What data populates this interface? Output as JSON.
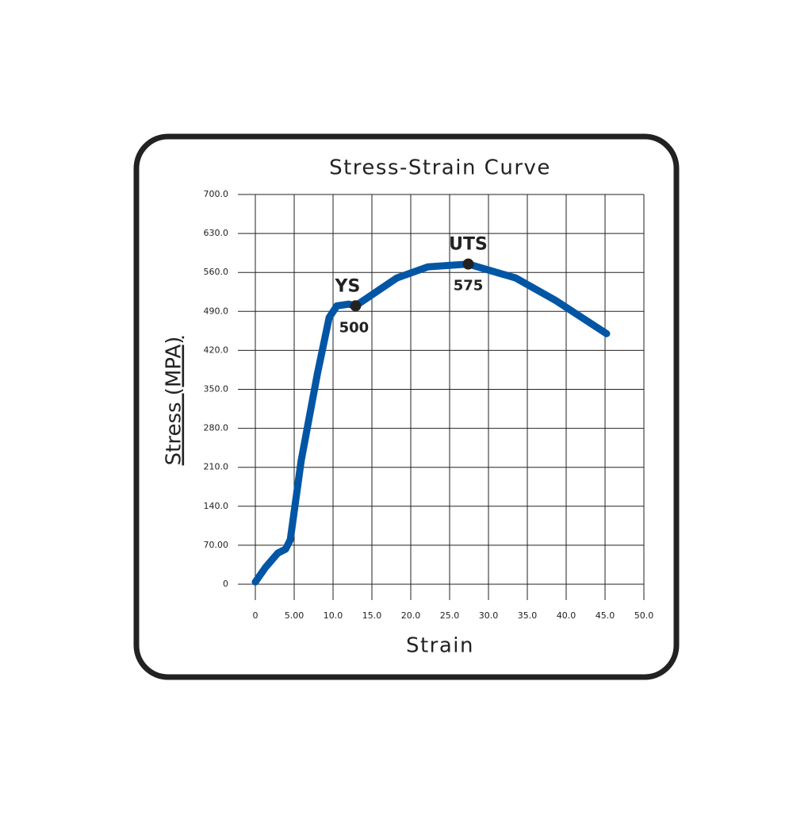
{
  "chart_data": {
    "type": "line",
    "title": "Stress-Strain Curve",
    "xlabel": "Strain",
    "ylabel": "Stress (MPA)",
    "x": [
      0,
      1.3,
      2.9,
      3.9,
      4.5,
      5.9,
      8.0,
      9.5,
      10.5,
      12.0,
      12.9,
      18.2,
      22.2,
      27.4,
      33.5,
      38.6,
      45.2
    ],
    "values": [
      4,
      30,
      56,
      63,
      80,
      222,
      379,
      479,
      500,
      503,
      500,
      550,
      570,
      575,
      550,
      510,
      450
    ],
    "color": "#0056a4",
    "points": [
      {
        "name": "YS",
        "x": 12.9,
        "y": 500
      },
      {
        "name": "UTS",
        "x": 27.4,
        "y": 575
      }
    ],
    "xlim": [
      0,
      50
    ],
    "xticks": [
      0,
      {
        "value": 5,
        "label": "5.00"
      },
      {
        "value": 10,
        "label": "10.0"
      },
      {
        "value": 15,
        "label": "15.0"
      },
      {
        "value": 20,
        "label": "20.0"
      },
      {
        "value": 25,
        "label": "25.0"
      },
      {
        "value": 30,
        "label": "30.0"
      },
      {
        "value": 35,
        "label": "35.0"
      },
      {
        "value": 40,
        "label": "40.0"
      },
      {
        "value": 45,
        "label": "45.0"
      },
      {
        "value": 50,
        "label": "50.0"
      }
    ],
    "ylim": [
      0,
      700
    ],
    "yticks": [
      0,
      {
        "value": 70,
        "label": "70.00"
      },
      {
        "value": 140,
        "label": "140.0"
      },
      {
        "value": 210,
        "label": "210.0"
      },
      {
        "value": 280,
        "label": "280.0"
      },
      {
        "value": 350,
        "label": "350.0"
      },
      {
        "value": 420,
        "label": "420.0"
      },
      {
        "value": 490,
        "label": "490.0"
      },
      {
        "value": 560,
        "label": "560.0"
      },
      {
        "value": 630,
        "label": "630.0"
      },
      {
        "value": 700,
        "label": "700.0"
      }
    ],
    "grid": true
  }
}
